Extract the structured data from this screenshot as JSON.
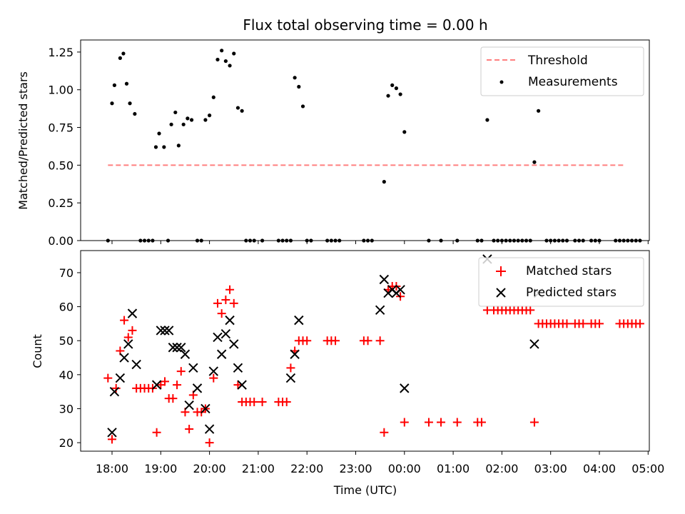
{
  "figure_title": "Flux total observing time = 0.00 h",
  "xlabel": "Time (UTC)",
  "x_ticks": [
    "18:00",
    "19:00",
    "20:00",
    "21:00",
    "22:00",
    "23:00",
    "00:00",
    "01:00",
    "02:00",
    "03:00",
    "04:00",
    "05:00"
  ],
  "colors": {
    "threshold": "#ff7f7f",
    "measurements": "#000000",
    "matched": "#ff0000",
    "predicted": "#000000"
  },
  "chart_data": [
    {
      "type": "scatter",
      "title": "Flux total observing time = 0.00 h",
      "ylabel": "Matched/Predicted stars",
      "xlabel": "",
      "ylim": [
        0,
        1.33
      ],
      "y_ticks": [
        "0.00",
        "0.25",
        "0.50",
        "0.75",
        "1.00",
        "1.25"
      ],
      "legend": [
        "Threshold",
        "Measurements"
      ],
      "legend_position": "top-right",
      "threshold": {
        "name": "Threshold",
        "value": 0.5,
        "x_start": "17:55",
        "x_end": "04:30"
      },
      "series": [
        {
          "name": "Measurements",
          "points": [
            [
              "17:55",
              0
            ],
            [
              "18:00",
              0.91
            ],
            [
              "18:03",
              1.03
            ],
            [
              "18:10",
              1.21
            ],
            [
              "18:14",
              1.24
            ],
            [
              "18:18",
              1.04
            ],
            [
              "18:22",
              0.91
            ],
            [
              "18:28",
              0.84
            ],
            [
              "18:35",
              0
            ],
            [
              "18:40",
              0
            ],
            [
              "18:45",
              0
            ],
            [
              "18:50",
              0
            ],
            [
              "18:54",
              0.62
            ],
            [
              "18:58",
              0.71
            ],
            [
              "19:04",
              0.62
            ],
            [
              "19:09",
              0
            ],
            [
              "19:13",
              0.77
            ],
            [
              "19:18",
              0.85
            ],
            [
              "19:22",
              0.63
            ],
            [
              "19:28",
              0.77
            ],
            [
              "19:33",
              0.81
            ],
            [
              "19:38",
              0.8
            ],
            [
              "19:45",
              0
            ],
            [
              "19:50",
              0
            ],
            [
              "19:55",
              0.8
            ],
            [
              "20:00",
              0.83
            ],
            [
              "20:05",
              0.95
            ],
            [
              "20:10",
              1.2
            ],
            [
              "20:15",
              1.26
            ],
            [
              "20:20",
              1.19
            ],
            [
              "20:25",
              1.16
            ],
            [
              "20:30",
              1.24
            ],
            [
              "20:35",
              0.88
            ],
            [
              "20:40",
              0.86
            ],
            [
              "20:45",
              0
            ],
            [
              "20:50",
              0
            ],
            [
              "20:55",
              0
            ],
            [
              "21:05",
              0
            ],
            [
              "21:25",
              0
            ],
            [
              "21:30",
              0
            ],
            [
              "21:35",
              0
            ],
            [
              "21:40",
              0
            ],
            [
              "21:45",
              1.08
            ],
            [
              "21:50",
              1.02
            ],
            [
              "21:55",
              0.89
            ],
            [
              "22:00",
              0
            ],
            [
              "22:05",
              0
            ],
            [
              "22:25",
              0
            ],
            [
              "22:30",
              0
            ],
            [
              "22:35",
              0
            ],
            [
              "22:40",
              0
            ],
            [
              "23:10",
              0
            ],
            [
              "23:15",
              0
            ],
            [
              "23:20",
              0
            ],
            [
              "23:35",
              0.39
            ],
            [
              "23:40",
              0.96
            ],
            [
              "23:45",
              1.03
            ],
            [
              "23:50",
              1.01
            ],
            [
              "23:55",
              0.97
            ],
            [
              "00:00",
              0.72
            ],
            [
              "00:30",
              0
            ],
            [
              "00:45",
              0
            ],
            [
              "01:05",
              0
            ],
            [
              "01:30",
              0
            ],
            [
              "01:35",
              0
            ],
            [
              "01:42",
              0.8
            ],
            [
              "01:50",
              0
            ],
            [
              "01:55",
              0
            ],
            [
              "02:00",
              0
            ],
            [
              "02:05",
              0
            ],
            [
              "02:10",
              0
            ],
            [
              "02:15",
              0
            ],
            [
              "02:20",
              0
            ],
            [
              "02:25",
              0
            ],
            [
              "02:30",
              0
            ],
            [
              "02:35",
              0
            ],
            [
              "02:40",
              0.52
            ],
            [
              "02:45",
              0.86
            ],
            [
              "02:55",
              0
            ],
            [
              "03:00",
              0
            ],
            [
              "03:05",
              0
            ],
            [
              "03:10",
              0
            ],
            [
              "03:15",
              0
            ],
            [
              "03:20",
              0
            ],
            [
              "03:30",
              0
            ],
            [
              "03:35",
              0
            ],
            [
              "03:40",
              0
            ],
            [
              "03:50",
              0
            ],
            [
              "03:55",
              0
            ],
            [
              "04:00",
              0
            ],
            [
              "04:20",
              0
            ],
            [
              "04:25",
              0
            ],
            [
              "04:30",
              0
            ],
            [
              "04:35",
              0
            ],
            [
              "04:40",
              0
            ],
            [
              "04:45",
              0
            ],
            [
              "04:50",
              0
            ]
          ]
        }
      ]
    },
    {
      "type": "scatter",
      "title": "",
      "ylabel": "Count",
      "xlabel": "Time (UTC)",
      "ylim": [
        17.5,
        76.5
      ],
      "y_ticks": [
        "20",
        "30",
        "40",
        "50",
        "60",
        "70"
      ],
      "legend": [
        "Matched stars",
        "Predicted stars"
      ],
      "legend_position": "top-right",
      "series": [
        {
          "name": "Matched stars",
          "marker": "+",
          "points": [
            [
              "17:55",
              39
            ],
            [
              "18:00",
              21
            ],
            [
              "18:05",
              36
            ],
            [
              "18:10",
              47
            ],
            [
              "18:15",
              56
            ],
            [
              "18:20",
              51
            ],
            [
              "18:25",
              53
            ],
            [
              "18:30",
              36
            ],
            [
              "18:35",
              36
            ],
            [
              "18:40",
              36
            ],
            [
              "18:45",
              36
            ],
            [
              "18:50",
              36
            ],
            [
              "18:55",
              23
            ],
            [
              "19:00",
              37
            ],
            [
              "19:05",
              38
            ],
            [
              "19:10",
              33
            ],
            [
              "19:15",
              33
            ],
            [
              "19:20",
              37
            ],
            [
              "19:25",
              41
            ],
            [
              "19:30",
              29
            ],
            [
              "19:35",
              24
            ],
            [
              "19:40",
              34
            ],
            [
              "19:45",
              29
            ],
            [
              "19:50",
              29
            ],
            [
              "19:55",
              30
            ],
            [
              "20:00",
              20
            ],
            [
              "20:05",
              39
            ],
            [
              "20:10",
              61
            ],
            [
              "20:15",
              58
            ],
            [
              "20:20",
              62
            ],
            [
              "20:25",
              65
            ],
            [
              "20:30",
              61
            ],
            [
              "20:35",
              37
            ],
            [
              "20:40",
              32
            ],
            [
              "20:45",
              32
            ],
            [
              "20:50",
              32
            ],
            [
              "20:55",
              32
            ],
            [
              "21:05",
              32
            ],
            [
              "21:25",
              32
            ],
            [
              "21:30",
              32
            ],
            [
              "21:35",
              32
            ],
            [
              "21:40",
              42
            ],
            [
              "21:45",
              47
            ],
            [
              "21:50",
              50
            ],
            [
              "21:55",
              50
            ],
            [
              "22:00",
              50
            ],
            [
              "22:25",
              50
            ],
            [
              "22:30",
              50
            ],
            [
              "22:35",
              50
            ],
            [
              "23:10",
              50
            ],
            [
              "23:15",
              50
            ],
            [
              "23:30",
              50
            ],
            [
              "23:35",
              23
            ],
            [
              "23:40",
              65
            ],
            [
              "23:45",
              66
            ],
            [
              "23:50",
              66
            ],
            [
              "23:55",
              63
            ],
            [
              "00:00",
              26
            ],
            [
              "00:30",
              26
            ],
            [
              "00:45",
              26
            ],
            [
              "01:05",
              26
            ],
            [
              "01:30",
              26
            ],
            [
              "01:35",
              26
            ],
            [
              "01:42",
              59
            ],
            [
              "01:50",
              59
            ],
            [
              "01:55",
              59
            ],
            [
              "02:00",
              59
            ],
            [
              "02:05",
              59
            ],
            [
              "02:10",
              59
            ],
            [
              "02:15",
              59
            ],
            [
              "02:20",
              59
            ],
            [
              "02:25",
              59
            ],
            [
              "02:30",
              59
            ],
            [
              "02:35",
              59
            ],
            [
              "02:40",
              26
            ],
            [
              "02:45",
              55
            ],
            [
              "02:50",
              55
            ],
            [
              "02:55",
              55
            ],
            [
              "03:00",
              55
            ],
            [
              "03:05",
              55
            ],
            [
              "03:10",
              55
            ],
            [
              "03:15",
              55
            ],
            [
              "03:20",
              55
            ],
            [
              "03:30",
              55
            ],
            [
              "03:35",
              55
            ],
            [
              "03:40",
              55
            ],
            [
              "03:50",
              55
            ],
            [
              "03:55",
              55
            ],
            [
              "04:00",
              55
            ],
            [
              "04:25",
              55
            ],
            [
              "04:30",
              55
            ],
            [
              "04:35",
              55
            ],
            [
              "04:40",
              55
            ],
            [
              "04:45",
              55
            ],
            [
              "04:50",
              55
            ]
          ]
        },
        {
          "name": "Predicted stars",
          "marker": "x",
          "points": [
            [
              "18:00",
              23
            ],
            [
              "18:03",
              35
            ],
            [
              "18:10",
              39
            ],
            [
              "18:15",
              45
            ],
            [
              "18:20",
              49
            ],
            [
              "18:25",
              58
            ],
            [
              "18:30",
              43
            ],
            [
              "18:55",
              37
            ],
            [
              "19:00",
              53
            ],
            [
              "19:05",
              53
            ],
            [
              "19:10",
              53
            ],
            [
              "19:15",
              48
            ],
            [
              "19:20",
              48
            ],
            [
              "19:25",
              48
            ],
            [
              "19:30",
              46
            ],
            [
              "19:35",
              31
            ],
            [
              "19:40",
              42
            ],
            [
              "19:45",
              36
            ],
            [
              "19:55",
              30
            ],
            [
              "20:00",
              24
            ],
            [
              "20:05",
              41
            ],
            [
              "20:10",
              51
            ],
            [
              "20:15",
              46
            ],
            [
              "20:20",
              52
            ],
            [
              "20:25",
              56
            ],
            [
              "20:30",
              49
            ],
            [
              "20:35",
              42
            ],
            [
              "20:40",
              37
            ],
            [
              "21:40",
              39
            ],
            [
              "21:45",
              46
            ],
            [
              "21:50",
              56
            ],
            [
              "23:30",
              59
            ],
            [
              "23:35",
              68
            ],
            [
              "23:40",
              64
            ],
            [
              "23:45",
              65
            ],
            [
              "23:50",
              64
            ],
            [
              "23:55",
              65
            ],
            [
              "00:00",
              36
            ],
            [
              "01:42",
              74
            ],
            [
              "02:40",
              49
            ],
            [
              "02:45",
              64
            ]
          ]
        }
      ]
    }
  ]
}
